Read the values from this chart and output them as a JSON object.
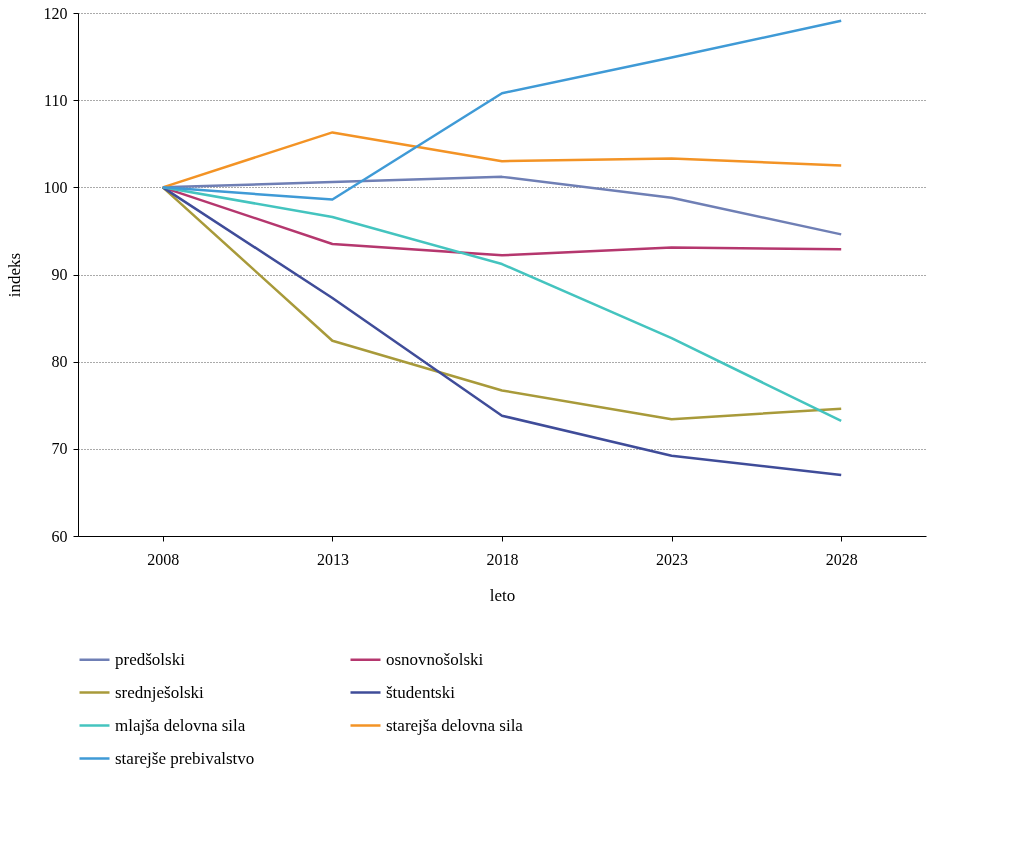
{
  "chart_data": {
    "type": "line",
    "xlabel": "leto",
    "ylabel": "indeks",
    "categories": [
      "2008",
      "2013",
      "2018",
      "2023",
      "2028"
    ],
    "ylim": [
      60,
      120
    ],
    "yticks": [
      60,
      70,
      80,
      90,
      100,
      110,
      120
    ],
    "grid": "y",
    "legend": "bottom",
    "line_style": "solid",
    "marker": "none",
    "series": [
      {
        "name": "predšolski",
        "color": "#6f7fb5",
        "values": [
          100,
          100.6,
          101.2,
          98.8,
          94.6
        ]
      },
      {
        "name": "osnovnošolski",
        "color": "#b5376e",
        "values": [
          100,
          93.5,
          92.2,
          93.1,
          92.9
        ]
      },
      {
        "name": "srednješolski",
        "color": "#a89a3a",
        "values": [
          100,
          82.4,
          76.7,
          73.4,
          74.6
        ]
      },
      {
        "name": "študentski",
        "color": "#3f4c99",
        "values": [
          100,
          87.3,
          73.8,
          69.2,
          67.0
        ]
      },
      {
        "name": "mlajša delovna sila",
        "color": "#44c4bf",
        "values": [
          100,
          96.6,
          91.2,
          82.7,
          73.2
        ]
      },
      {
        "name": "starejša delovna sila",
        "color": "#f39325",
        "values": [
          100,
          106.3,
          103.0,
          103.3,
          102.5
        ]
      },
      {
        "name": "starejše prebivalstvo",
        "color": "#3f9ad6",
        "values": [
          100,
          98.6,
          110.8,
          114.9,
          119.1
        ]
      }
    ]
  }
}
